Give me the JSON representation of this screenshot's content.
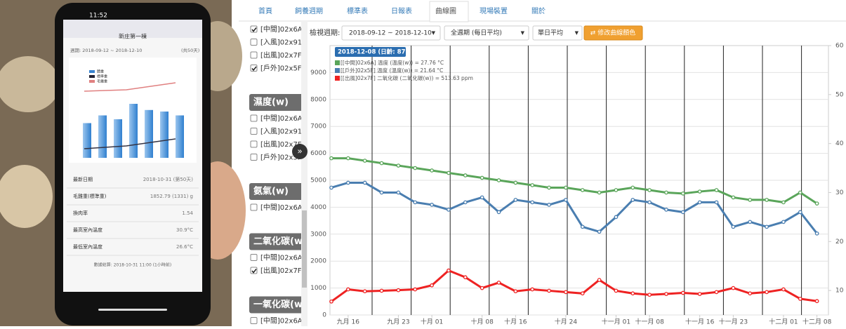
{
  "photo": {
    "time": "11:52",
    "title": "新庄第一棟",
    "period": "週期: 2018-09-12 ~ 2018-12-10",
    "unit": "(共50天)",
    "legend": [
      "體重",
      "標準重",
      "毛雞重"
    ],
    "rows": [
      {
        "label": "最新日期",
        "value": "2018-10-31 (第50天)"
      },
      {
        "label": "毛雞重(標準重)",
        "value": "1852.79 (1331) g"
      },
      {
        "label": "換肉率",
        "value": "1.54"
      },
      {
        "label": "最高室內溫度",
        "value": "30.9°C"
      },
      {
        "label": "最低室內溫度",
        "value": "26.6°C"
      }
    ],
    "footer": "數據結算: 2018-10-31 11:00 (1小時前)"
  },
  "nav": {
    "tabs": [
      "首頁",
      "飼養週期",
      "標準表",
      "日報表",
      "曲線圖",
      "現場裝置",
      "關於"
    ],
    "active": 4
  },
  "sidebar": [
    {
      "items": [
        {
          "label": "[中間]02x6A",
          "checked": true
        },
        {
          "label": "[入風]02x91",
          "checked": false
        },
        {
          "label": "[出風]02x7F",
          "checked": false
        },
        {
          "label": "[戶外]02x5F",
          "checked": true
        }
      ]
    },
    {
      "title": "濕度(w)",
      "items": [
        {
          "label": "[中間]02x6A",
          "checked": false
        },
        {
          "label": "[入風]02x91",
          "checked": false
        },
        {
          "label": "[出風]02x7F",
          "checked": false
        },
        {
          "label": "[戶外]02x5F",
          "checked": false
        }
      ]
    },
    {
      "title": "氨氣(w)",
      "items": [
        {
          "label": "[中間]02x6A",
          "checked": false
        }
      ]
    },
    {
      "title": "二氧化碳(w)",
      "items": [
        {
          "label": "[中間]02x6A",
          "checked": false
        },
        {
          "label": "[出風]02x7F",
          "checked": true
        }
      ]
    },
    {
      "title": "一氧化碳(w)",
      "items": [
        {
          "label": "[中間]02x6A",
          "checked": false
        }
      ]
    }
  ],
  "controls": {
    "label": "檢視週期:",
    "period": "2018-09-12 ~ 2018-12-10",
    "mode": "全週期 (每日平均)",
    "average": "單日平均",
    "button": "⇄ 修改曲線顏色"
  },
  "chart_data": {
    "type": "line",
    "categories": [
      null,
      "九月 16",
      null,
      null,
      "九月 23",
      null,
      "十月 01",
      null,
      null,
      "十月 08",
      null,
      "十月 16",
      null,
      null,
      "十月 24",
      null,
      null,
      "十一月 01",
      null,
      "十一月 08",
      null,
      null,
      "十一月 16",
      null,
      "十一月 23",
      null,
      null,
      "十二月 01",
      null,
      "十二月 08"
    ],
    "series": [
      {
        "name": "[[中間]02x6A] 溫度 (溫度(w)) = 27.76 °C",
        "color": "#5aa55a",
        "axis": "y2",
        "values": [
          37,
          37,
          36.5,
          36,
          35.5,
          35,
          34.5,
          34,
          33.5,
          33,
          32.5,
          32,
          31.5,
          31,
          31,
          30.5,
          30,
          30.5,
          31,
          30.5,
          30,
          29.8,
          30.2,
          30.5,
          29,
          28.5,
          28.5,
          28,
          30,
          27.76
        ]
      },
      {
        "name": "[[戶外]02x5F] 溫度 (溫度(w)) = 21.64 °C",
        "color": "#4a7eb0",
        "axis": "y2",
        "values": [
          31,
          32,
          32,
          30,
          30,
          28,
          27.5,
          26.5,
          28,
          29,
          26,
          28.5,
          28,
          27.5,
          28.5,
          23,
          22,
          25,
          28.5,
          28,
          26.5,
          26,
          28,
          28,
          23,
          24,
          23,
          24,
          26,
          21.64
        ]
      },
      {
        "name": "[[出風]02x7F] 二氧化碳 (二氧化碳(w)) = 513.63 ppm",
        "color": "#ee2222",
        "values": [
          500,
          950,
          880,
          900,
          920,
          950,
          1100,
          1650,
          1400,
          1000,
          1200,
          880,
          950,
          900,
          850,
          800,
          1300,
          900,
          800,
          750,
          780,
          820,
          780,
          850,
          1000,
          800,
          850,
          950,
          600,
          513.63
        ]
      }
    ],
    "tooltip": "2018-12-08 (日齡: 87)",
    "ylim": [
      0,
      10000
    ],
    "yticks": [
      0,
      1000,
      2000,
      3000,
      4000,
      5000,
      6000,
      7000,
      8000,
      9000
    ],
    "y2lim": [
      5,
      60
    ],
    "y2ticks": [
      10,
      20,
      30,
      40,
      50,
      60
    ],
    "grid": true
  }
}
